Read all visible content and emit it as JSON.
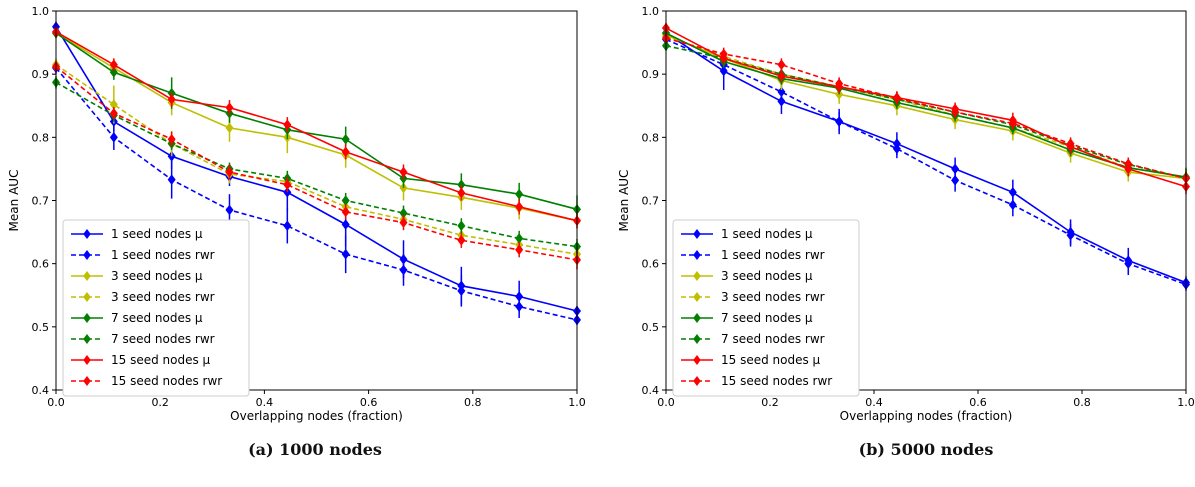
{
  "chart_data": [
    {
      "type": "line",
      "caption": "(a) 1000 nodes",
      "xlabel": "Overlapping nodes (fraction)",
      "ylabel": "Mean AUC",
      "xlim": [
        0,
        1
      ],
      "ylim": [
        0.4,
        1.0
      ],
      "xticks": [
        "0.0",
        "0.2",
        "0.4",
        "0.6",
        "0.8",
        "1.0"
      ],
      "yticks": [
        "0.4",
        "0.5",
        "0.6",
        "0.7",
        "0.8",
        "0.9",
        "1.0"
      ],
      "x": [
        0,
        0.111,
        0.222,
        0.333,
        0.444,
        0.556,
        0.667,
        0.778,
        0.889,
        1.0
      ],
      "legend_position": "lower-left",
      "grid": false,
      "series": [
        {
          "name": "1 seed nodes μ",
          "color": "#0000ff",
          "dash": false,
          "values": [
            0.975,
            0.825,
            0.77,
            0.738,
            0.713,
            0.662,
            0.607,
            0.565,
            0.548,
            0.525
          ],
          "err": [
            0.008,
            0.015,
            0.02,
            0.015,
            0.03,
            0.035,
            0.03,
            0.03,
            0.025,
            0.008
          ]
        },
        {
          "name": "1 seed nodes rwr",
          "color": "#0000ff",
          "dash": true,
          "values": [
            0.91,
            0.8,
            0.733,
            0.685,
            0.66,
            0.615,
            0.59,
            0.557,
            0.532,
            0.511
          ],
          "err": [
            0.01,
            0.02,
            0.03,
            0.025,
            0.028,
            0.03,
            0.025,
            0.025,
            0.018,
            0.008
          ]
        },
        {
          "name": "3 seed nodes μ",
          "color": "#bfbf00",
          "dash": false,
          "values": [
            0.965,
            0.91,
            0.855,
            0.815,
            0.8,
            0.772,
            0.72,
            0.705,
            0.688,
            0.668
          ],
          "err": [
            0.008,
            0.015,
            0.02,
            0.022,
            0.025,
            0.02,
            0.02,
            0.02,
            0.018,
            0.012
          ]
        },
        {
          "name": "3 seed nodes rwr",
          "color": "#bfbf00",
          "dash": true,
          "values": [
            0.915,
            0.852,
            0.79,
            0.742,
            0.73,
            0.69,
            0.67,
            0.645,
            0.63,
            0.615
          ],
          "err": [
            0.01,
            0.03,
            0.02,
            0.015,
            0.015,
            0.012,
            0.012,
            0.015,
            0.012,
            0.01
          ]
        },
        {
          "name": "7 seed nodes μ",
          "color": "#008000",
          "dash": false,
          "values": [
            0.965,
            0.903,
            0.87,
            0.838,
            0.812,
            0.797,
            0.735,
            0.725,
            0.71,
            0.686
          ],
          "err": [
            0.008,
            0.012,
            0.025,
            0.015,
            0.015,
            0.02,
            0.015,
            0.018,
            0.018,
            0.022
          ]
        },
        {
          "name": "7 seed nodes rwr",
          "color": "#008000",
          "dash": true,
          "values": [
            0.887,
            0.835,
            0.79,
            0.75,
            0.735,
            0.7,
            0.68,
            0.66,
            0.64,
            0.627
          ],
          "err": [
            0.01,
            0.01,
            0.01,
            0.01,
            0.012,
            0.012,
            0.012,
            0.012,
            0.012,
            0.012
          ]
        },
        {
          "name": "15 seed nodes μ",
          "color": "#ff0000",
          "dash": false,
          "values": [
            0.967,
            0.915,
            0.86,
            0.847,
            0.82,
            0.777,
            0.745,
            0.712,
            0.69,
            0.668
          ],
          "err": [
            0.008,
            0.01,
            0.012,
            0.012,
            0.012,
            0.012,
            0.012,
            0.012,
            0.012,
            0.012
          ]
        },
        {
          "name": "15 seed nodes rwr",
          "color": "#ff0000",
          "dash": true,
          "values": [
            0.912,
            0.838,
            0.797,
            0.745,
            0.725,
            0.682,
            0.665,
            0.637,
            0.622,
            0.606
          ],
          "err": [
            0.008,
            0.01,
            0.012,
            0.012,
            0.012,
            0.012,
            0.012,
            0.012,
            0.012,
            0.015
          ]
        }
      ]
    },
    {
      "type": "line",
      "caption": "(b) 5000 nodes",
      "xlabel": "Overlapping nodes (fraction)",
      "ylabel": "Mean AUC",
      "xlim": [
        0,
        1
      ],
      "ylim": [
        0.4,
        1.0
      ],
      "xticks": [
        "0.0",
        "0.2",
        "0.4",
        "0.6",
        "0.8",
        "1.0"
      ],
      "yticks": [
        "0.4",
        "0.5",
        "0.6",
        "0.7",
        "0.8",
        "0.9",
        "1.0"
      ],
      "x": [
        0,
        0.111,
        0.222,
        0.333,
        0.444,
        0.556,
        0.667,
        0.778,
        0.889,
        1.0
      ],
      "legend_position": "lower-left",
      "grid": false,
      "series": [
        {
          "name": "1 seed nodes μ",
          "color": "#0000ff",
          "dash": false,
          "values": [
            0.965,
            0.905,
            0.857,
            0.825,
            0.79,
            0.75,
            0.713,
            0.65,
            0.605,
            0.57
          ],
          "err": [
            0.008,
            0.03,
            0.02,
            0.02,
            0.018,
            0.018,
            0.02,
            0.02,
            0.02,
            0.01
          ]
        },
        {
          "name": "1 seed nodes rwr",
          "color": "#0000ff",
          "dash": true,
          "values": [
            0.955,
            0.915,
            0.872,
            0.825,
            0.782,
            0.732,
            0.693,
            0.645,
            0.6,
            0.567
          ],
          "err": [
            0.008,
            0.02,
            0.02,
            0.015,
            0.015,
            0.018,
            0.018,
            0.018,
            0.018,
            0.01
          ]
        },
        {
          "name": "3 seed nodes μ",
          "color": "#bfbf00",
          "dash": false,
          "values": [
            0.962,
            0.925,
            0.89,
            0.868,
            0.85,
            0.828,
            0.81,
            0.775,
            0.745,
            0.735
          ],
          "err": [
            0.008,
            0.012,
            0.015,
            0.015,
            0.015,
            0.015,
            0.015,
            0.015,
            0.015,
            0.015
          ]
        },
        {
          "name": "3 seed nodes rwr",
          "color": "#bfbf00",
          "dash": true,
          "values": [
            0.96,
            0.928,
            0.9,
            0.88,
            0.86,
            0.835,
            0.815,
            0.785,
            0.752,
            0.737
          ],
          "err": [
            0.008,
            0.012,
            0.012,
            0.012,
            0.012,
            0.012,
            0.012,
            0.012,
            0.012,
            0.012
          ]
        },
        {
          "name": "7 seed nodes μ",
          "color": "#008000",
          "dash": false,
          "values": [
            0.965,
            0.92,
            0.893,
            0.878,
            0.855,
            0.835,
            0.815,
            0.78,
            0.752,
            0.737
          ],
          "err": [
            0.008,
            0.01,
            0.01,
            0.01,
            0.01,
            0.01,
            0.01,
            0.01,
            0.01,
            0.015
          ]
        },
        {
          "name": "7 seed nodes rwr",
          "color": "#008000",
          "dash": true,
          "values": [
            0.945,
            0.925,
            0.9,
            0.88,
            0.86,
            0.84,
            0.82,
            0.787,
            0.757,
            0.735
          ],
          "err": [
            0.008,
            0.01,
            0.01,
            0.01,
            0.01,
            0.01,
            0.01,
            0.01,
            0.01,
            0.01
          ]
        },
        {
          "name": "15 seed nodes μ",
          "color": "#ff0000",
          "dash": false,
          "values": [
            0.973,
            0.925,
            0.897,
            0.88,
            0.863,
            0.845,
            0.827,
            0.785,
            0.75,
            0.722
          ],
          "err": [
            0.008,
            0.01,
            0.01,
            0.01,
            0.01,
            0.01,
            0.012,
            0.012,
            0.012,
            0.012
          ]
        },
        {
          "name": "15 seed nodes rwr",
          "color": "#ff0000",
          "dash": true,
          "values": [
            0.957,
            0.932,
            0.915,
            0.885,
            0.862,
            0.84,
            0.822,
            0.79,
            0.758,
            0.735
          ],
          "err": [
            0.008,
            0.01,
            0.01,
            0.01,
            0.01,
            0.01,
            0.01,
            0.01,
            0.01,
            0.01
          ]
        }
      ]
    }
  ]
}
